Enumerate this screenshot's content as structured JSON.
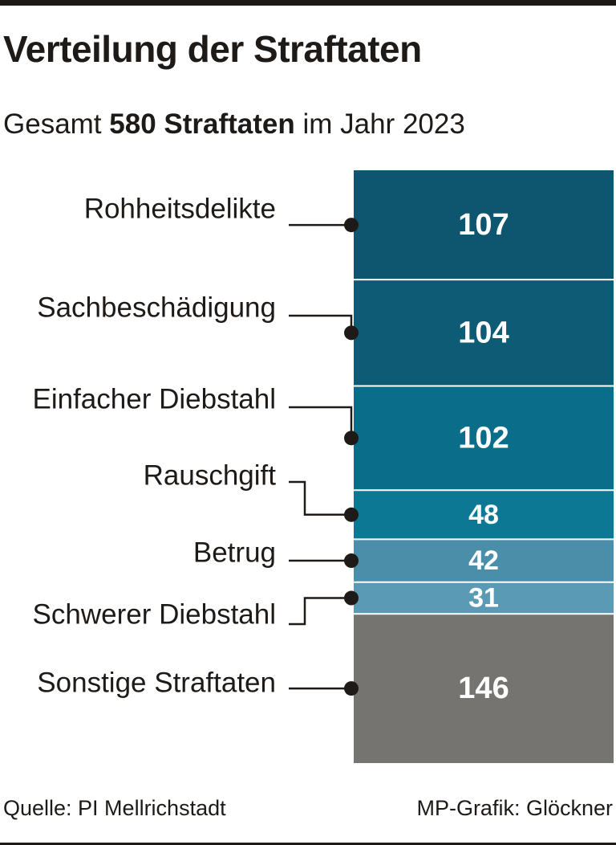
{
  "header": {
    "title": "Verteilung der Straftaten",
    "subtitle_prefix": "Gesamt ",
    "subtitle_bold": "580 Straftaten",
    "subtitle_suffix": " im Jahr 2023"
  },
  "chart_data": {
    "type": "bar",
    "subtype": "stacked-single-column",
    "title": "Verteilung der Straftaten",
    "subtitle": "Gesamt 580 Straftaten im Jahr 2023",
    "total": 580,
    "categories": [
      "Rohheitsdelikte",
      "Sachbeschädigung",
      "Einfacher Diebstahl",
      "Rauschgift",
      "Betrug",
      "Schwerer Diebstahl",
      "Sonstige Straftaten"
    ],
    "values": [
      107,
      104,
      102,
      48,
      42,
      31,
      146
    ],
    "colors": [
      "#0e5570",
      "#0d5b75",
      "#0a6e8a",
      "#0d7893",
      "#4a8ea9",
      "#5b9ab5",
      "#767471"
    ],
    "segment_text_color": "#ffffff",
    "separator_color": "#ffffff",
    "legend": "left"
  },
  "footer": {
    "source": "Quelle: PI Mellrichstadt",
    "credit": "MP-Grafik: Glöckner"
  }
}
